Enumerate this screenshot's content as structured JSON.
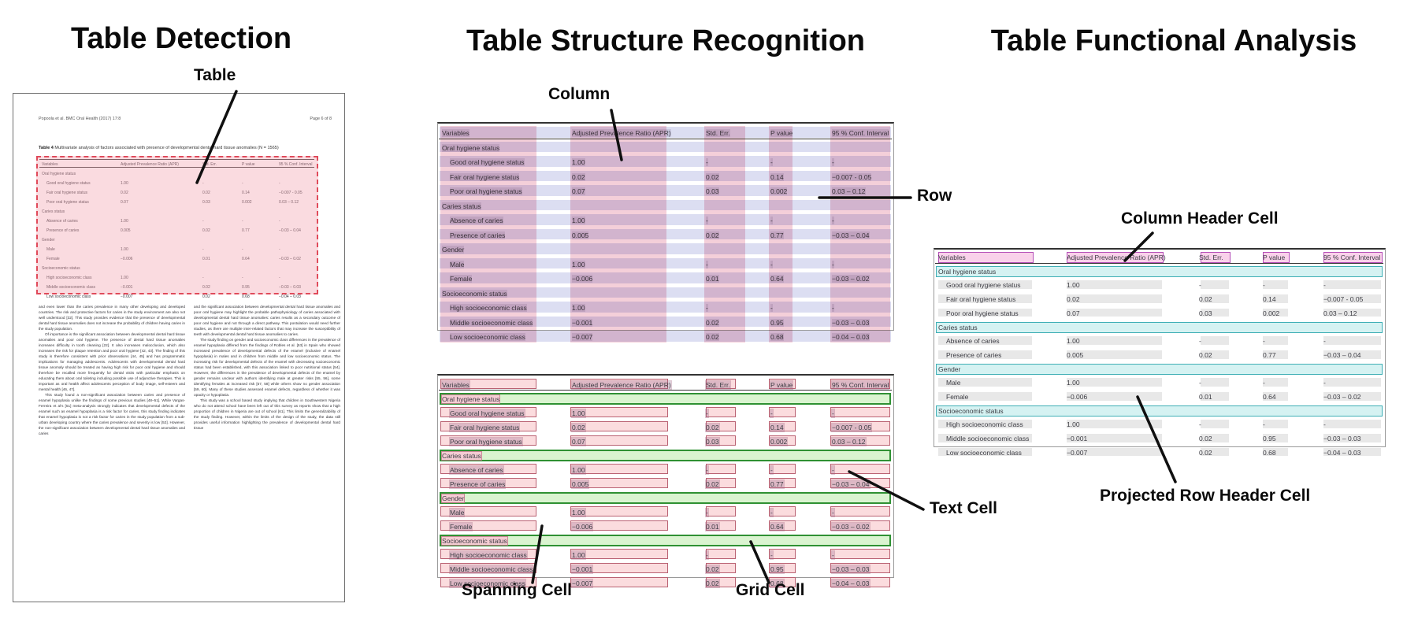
{
  "panels": {
    "detection": {
      "title": "Table Detection",
      "callouts": {
        "table": "Table"
      }
    },
    "structure": {
      "title": "Table Structure Recognition",
      "callouts": {
        "column": "Column",
        "row": "Row",
        "spanning_cell": "Spanning Cell",
        "grid_cell": "Grid Cell",
        "text_cell": "Text Cell"
      }
    },
    "functional": {
      "title": "Table Functional Analysis",
      "callouts": {
        "column_header_cell": "Column Header Cell",
        "projected_row_header_cell": "Projected Row Header Cell"
      }
    }
  },
  "document": {
    "header_left": "Popoola et al. BMC Oral Health  (2017) 17:8",
    "header_right": "Page 6 of 8",
    "caption_bold": "Table 4",
    "caption_rest": " Multivariate analysis of factors associated with presence of developmental dental hard tissue anomalies (N = 1565)",
    "body_left": [
      "and even lower than the caries prevalence in many other developing and developed countries. The risk and protective factors for caries in the study environment are also not well understood [32]. This study provides evidence that the presence of developmental dental hard tissue anomalies does not increase the probability of children having caries in the study population.",
      "Of importance is the significant association between developmental dental hard tissue anomalies and poor oral hygiene. The presence of dental hard tissue anomalies increases difficulty in tooth cleaning [22]. It also increases malocclusion, which also increases the risk for plaque retention and poor oral hygiene [42, 43]. The finding of this study is therefore consistent with prior observations [44, 45] and has programmatic implications for managing adolescents. Adolescents with developmental dental hard tissue anomaly should be treated as having high risk for poor oral hygiene and should therefore be recalled more frequently for dental visits with particular emphasis on educating them about oral toileting including possible use of adjunctive therapies. This is important as oral health affect adolescents perception of body image, self-esteem and mental health [46, 47].",
      "This study found a non-significant association between caries and presence of enamel hypoplasia unlike the findings of some previous studies [48–51]. While Vargas-Ferreira et al's [51] meta-analysis strongly indicates that developmental defects of the enamel such as enamel hypoplasia is a risk factor for caries, this study finding indicates that enamel hypoplasia is not a risk factor for caries in the study population from a sub-urban developing country where the caries prevalence and severity is low [52]. However, the non-significant association between developmental dental hard tissue anomalies and caries"
    ],
    "body_right": [
      "and the significant association between developmental dental hard tissue anomalies and poor oral hygiene may highlight the probable pathophysiology of caries associated with developmental dental hard tissue anomalies: caries results as a secondary outcome of poor oral hygiene and not through a direct pathway. This postulation would need further studies, as there are multiple inter-related factors that may increase the susceptibility of teeth with developmental dental hard tissue anomalies to caries.",
      "The study finding on gender and socioeconomic class differences in the prevalence of enamel hypoplasia differed from the findings of Robles et al. [53] in Spain who showed increased prevalence of developmental defects of the enamel (inclusive of enamel hypoplasia) in males and in children from middle and low socioeconomic status. The increasing risk for developmental defects of the enamel with decreasing socioeconomic status had been established, with this association linked to poor nutritional status [54]. However, the differences in the prevalence of developmental defects of the enamel by gender remains unclear with authors identifying male at greater risks [55, 56], some identifying females at increased risk [57, 58] while others show no gender association [59, 60]. Many of these studies assessed enamel defects, regardless of whether it was opacity or hypoplasia.",
      "This study was a school based study implying that children in Southwestern Nigeria who do not attend school have been left out of this survey as reports show that a high proportion of children in Nigeria are out of school [61]. This limits the generalizability of the study finding. However, within the limits of the design of the study, the data still provides useful information highlighting the prevalence of developmental dental hard tissue"
    ]
  },
  "table": {
    "columns": [
      "Variables",
      "Adjusted Prevalence Ratio (APR)",
      "Std. Err.",
      "P value",
      "95 % Conf. Interval"
    ],
    "rows": [
      {
        "type": "section",
        "label": "Oral hygiene status"
      },
      {
        "type": "data",
        "label": "Good oral hygiene status",
        "values": [
          "1.00",
          "-",
          "-",
          "-"
        ]
      },
      {
        "type": "data",
        "label": "Fair oral hygiene status",
        "values": [
          "0.02",
          "0.02",
          "0.14",
          "−0.007 - 0.05"
        ]
      },
      {
        "type": "data",
        "label": "Poor oral hygiene status",
        "values": [
          "0.07",
          "0.03",
          "0.002",
          "0.03 – 0.12"
        ]
      },
      {
        "type": "section",
        "label": "Caries status"
      },
      {
        "type": "data",
        "label": "Absence of caries",
        "values": [
          "1.00",
          "-",
          "-",
          "-"
        ]
      },
      {
        "type": "data",
        "label": "Presence of caries",
        "values": [
          "0.005",
          "0.02",
          "0.77",
          "−0.03 – 0.04"
        ]
      },
      {
        "type": "section",
        "label": "Gender"
      },
      {
        "type": "data",
        "label": "Male",
        "values": [
          "1.00",
          "-",
          "-",
          "-"
        ]
      },
      {
        "type": "data",
        "label": "Female",
        "values": [
          "−0.006",
          "0.01",
          "0.64",
          "−0.03 – 0.02"
        ]
      },
      {
        "type": "section",
        "label": "Socioeconomic status"
      },
      {
        "type": "data",
        "label": "High socioeconomic class",
        "values": [
          "1.00",
          "-",
          "-",
          "-"
        ]
      },
      {
        "type": "data",
        "label": "Middle socioeconomic class",
        "values": [
          "−0.001",
          "0.02",
          "0.95",
          "−0.03 – 0.03"
        ]
      },
      {
        "type": "data",
        "label": "Low socioeconomic class",
        "values": [
          "−0.007",
          "0.02",
          "0.68",
          "−0.04 – 0.03"
        ]
      }
    ]
  },
  "colors": {
    "detection_fill": "#f3a5b2",
    "detection_border": "#e04a5a",
    "row_band": "#dcdef2",
    "column_band": "#f2c3d0",
    "grid_cell_fill": "#fbdcde",
    "grid_cell_border": "#ba6273",
    "spanning_cell_fill": "#daf4d0",
    "spanning_cell_border": "#2f9133",
    "column_header_fill": "#f9d1ea",
    "column_header_border": "#b44fb8",
    "projected_row_header_fill": "#d5f2f2",
    "projected_row_header_border": "#3fafb6",
    "text_cell_highlight": "#e8e8e8"
  }
}
